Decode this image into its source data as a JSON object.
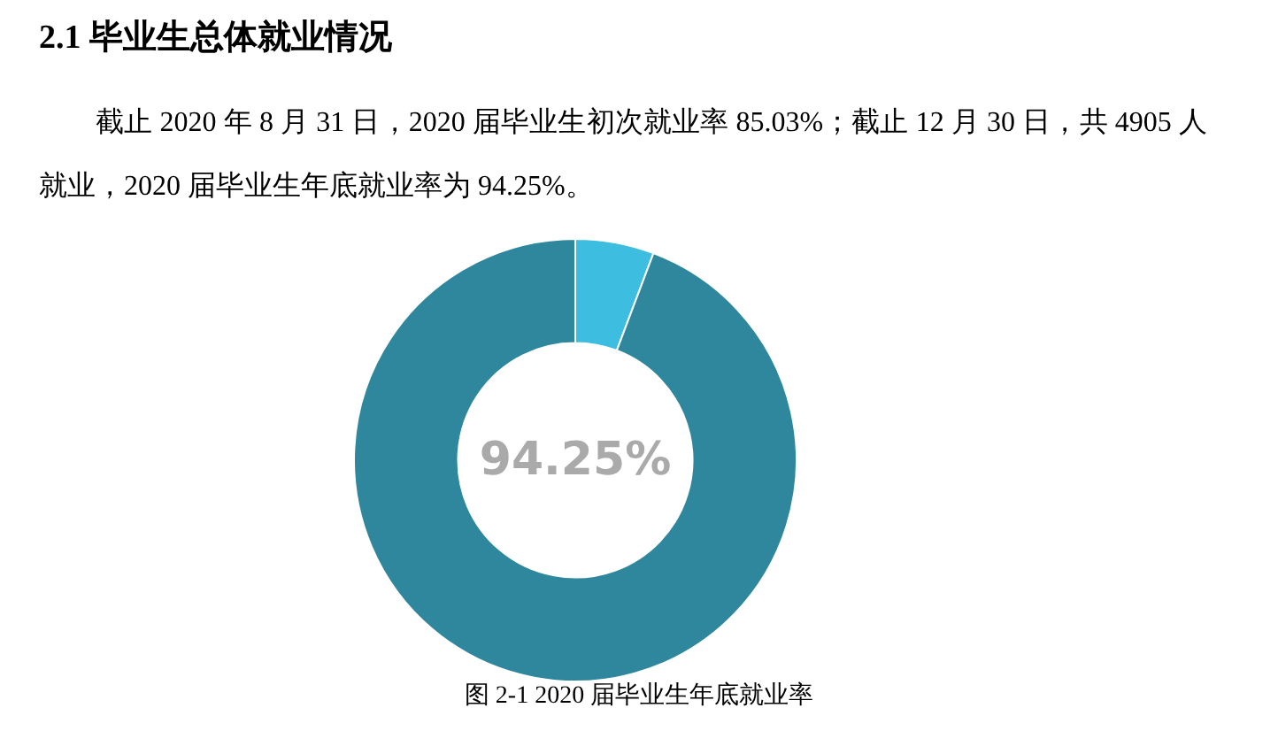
{
  "chart_data": {
    "type": "donut",
    "title": "2.1 毕业生总体就业情况",
    "categories": [
      null,
      null
    ],
    "values": [
      5.75,
      94.25
    ],
    "colors": [
      "#3dbde0",
      "#2f879d"
    ],
    "annotations": [
      "截止 2020 年 8 月 31 日，2020 届毕业生初次就业率 85.03%；截止 12 月 30 日，共 4905 人就业，2020 届毕业生年底就业率为 94.25%。",
      "94.25%",
      "图 2-1 2020 届毕业生年底就业率"
    ]
  }
}
